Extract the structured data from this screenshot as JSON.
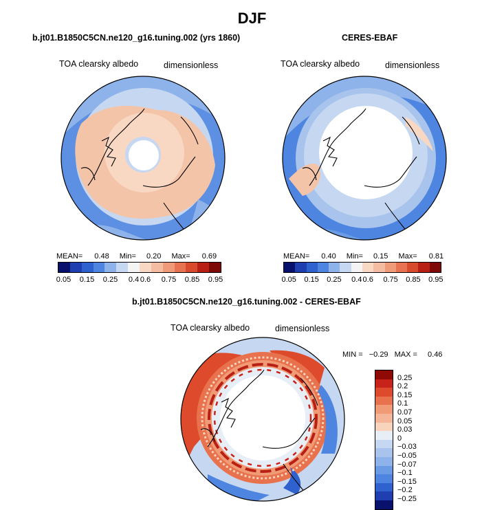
{
  "title": "DJF",
  "panels": [
    {
      "id": "model",
      "title": "b.jt01.B1850C5CN.ne120_g16.tuning.002 (yrs 1860)",
      "variable": "TOA clearsky albedo",
      "units": "dimensionless",
      "stats": {
        "mean_label": "MEAN=",
        "mean": "0.48",
        "min_label": "Min=",
        "min": "0.20",
        "max_label": "Max=",
        "max": "0.69"
      }
    },
    {
      "id": "obs",
      "title": "CERES-EBAF",
      "variable": "TOA clearsky albedo",
      "units": "dimensionless",
      "stats": {
        "mean_label": "MEAN=",
        "mean": "0.40",
        "min_label": "Min=",
        "min": "0.15",
        "max_label": "Max=",
        "max": "0.81"
      }
    }
  ],
  "diff_panel": {
    "title": "b.jt01.B1850C5CN.ne120_g16.tuning.002 - CERES-EBAF",
    "variable": "TOA clearsky albedo",
    "units": "dimensionless",
    "stats": {
      "min_label": "MIN =",
      "min": "−0.29",
      "max_label": "MAX =",
      "max": "0.46"
    }
  },
  "colorbar_abs": {
    "colors": [
      "#08116b",
      "#1f3fb0",
      "#2f62cf",
      "#4d85e0",
      "#8eb3ea",
      "#c6d8f1",
      "#f4f4f4",
      "#f8d7c3",
      "#f4bca0",
      "#ef9a78",
      "#e77352",
      "#d84a2c",
      "#b92015",
      "#7d0a06"
    ],
    "labels": [
      "0.05",
      "0.15",
      "0.25",
      "0.4",
      "0.6",
      "0.75",
      "0.85",
      "0.95"
    ]
  },
  "colorbar_diff": {
    "colors": [
      "#8f0a05",
      "#c8231a",
      "#de4a2c",
      "#e8724d",
      "#f09a76",
      "#f4b598",
      "#f8d4bd",
      "#e8eef6",
      "#c6d8f1",
      "#a8c4ec",
      "#8eb3ea",
      "#6b9be4",
      "#4d85e0",
      "#2f62cf",
      "#1f3fb0",
      "#08116b"
    ],
    "labels": [
      "0.25",
      "0.2",
      "0.15",
      "0.1",
      "0.07",
      "0.05",
      "0.03",
      "0",
      "−0.03",
      "−0.05",
      "−0.07",
      "−0.1",
      "−0.15",
      "−0.2",
      "−0.25"
    ]
  }
}
